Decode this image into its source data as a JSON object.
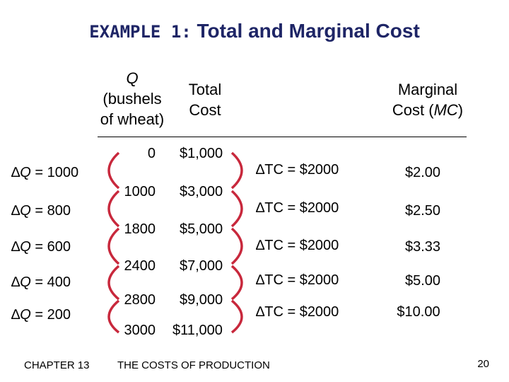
{
  "title_prefix": "EXAMPLE 1:",
  "title_main": "Total and Marginal Cost",
  "headers": {
    "q_var": "Q",
    "q_unit_line1": "(bushels",
    "q_unit_line2": "of wheat)",
    "tc_line1": "Total",
    "tc_line2": "Cost",
    "mc_line1": "Marginal",
    "mc_line2_prefix": "Cost (",
    "mc_line2_var": "MC",
    "mc_line2_suffix": ")"
  },
  "rows": [
    {
      "q": "0",
      "tc": "$1,000"
    },
    {
      "q": "1000",
      "tc": "$3,000"
    },
    {
      "q": "1800",
      "tc": "$5,000"
    },
    {
      "q": "2400",
      "tc": "$7,000"
    },
    {
      "q": "2800",
      "tc": "$9,000"
    },
    {
      "q": "3000",
      "tc": "$11,000"
    }
  ],
  "delta_symbol": "∆",
  "delta_q": [
    "= 1000",
    "= 800",
    "= 600",
    "= 400",
    "= 200"
  ],
  "delta_tc": [
    "∆TC = $2000",
    "∆TC = $2000",
    "∆TC = $2000",
    "∆TC = $2000",
    "∆TC = $2000"
  ],
  "mc": [
    "$2.00",
    "$2.50",
    "$3.33",
    "$5.00",
    "$10.00"
  ],
  "footer": {
    "chapter": "CHAPTER 13",
    "topic": "THE COSTS OF PRODUCTION",
    "page": "20"
  },
  "colors": {
    "title": "#1e2566",
    "arc": "#c8283c"
  }
}
